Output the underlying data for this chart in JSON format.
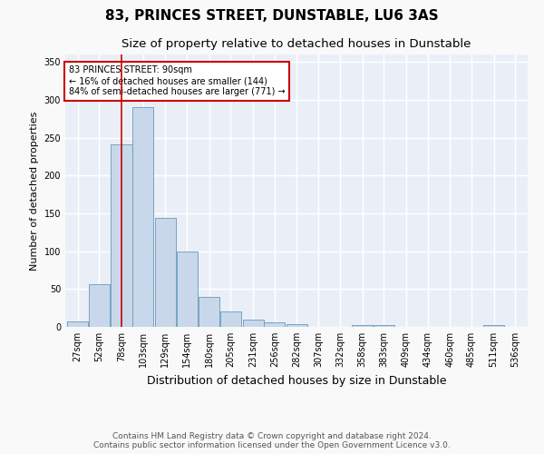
{
  "title": "83, PRINCES STREET, DUNSTABLE, LU6 3AS",
  "subtitle": "Size of property relative to detached houses in Dunstable",
  "xlabel": "Distribution of detached houses by size in Dunstable",
  "ylabel": "Number of detached properties",
  "bar_color": "#c8d8ea",
  "bar_edge_color": "#6699bb",
  "bg_color": "#eaeff7",
  "grid_color": "#ffffff",
  "vline_color": "#cc0000",
  "vline_x": 90,
  "annotation_text": "83 PRINCES STREET: 90sqm\n← 16% of detached houses are smaller (144)\n84% of semi-detached houses are larger (771) →",
  "annotation_box_color": "#ffffff",
  "annotation_box_edge": "#cc0000",
  "bins": [
    27,
    52,
    78,
    103,
    129,
    154,
    180,
    205,
    231,
    256,
    282,
    307,
    332,
    358,
    383,
    409,
    434,
    460,
    485,
    511,
    536
  ],
  "bar_heights": [
    7,
    57,
    241,
    291,
    144,
    100,
    40,
    20,
    10,
    6,
    4,
    0,
    0,
    3,
    3,
    0,
    0,
    0,
    0,
    2
  ],
  "ylim": [
    0,
    360
  ],
  "yticks": [
    0,
    50,
    100,
    150,
    200,
    250,
    300,
    350
  ],
  "footer_text": "Contains HM Land Registry data © Crown copyright and database right 2024.\nContains public sector information licensed under the Open Government Licence v3.0.",
  "title_fontsize": 11,
  "subtitle_fontsize": 9.5,
  "xlabel_fontsize": 9,
  "ylabel_fontsize": 8,
  "tick_fontsize": 7,
  "footer_fontsize": 6.5,
  "fig_bg": "#f9f9f9"
}
